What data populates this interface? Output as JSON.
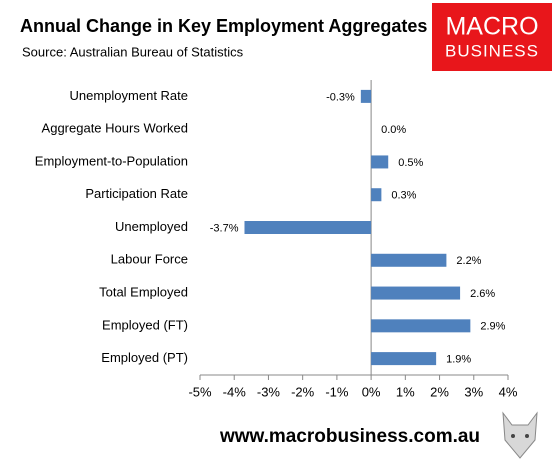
{
  "chart_data": {
    "type": "barh",
    "title": "Annual Change in Key Employment Aggregates",
    "subtitle": "Source: Australian Bureau of Statistics",
    "categories": [
      "Unemployment Rate",
      "Aggregate Hours Worked",
      "Employment-to-Population",
      "Participation Rate",
      "Unemployed",
      "Labour Force",
      "Total Employed",
      "Employed (FT)",
      "Employed (PT)"
    ],
    "values": [
      -0.3,
      0.0,
      0.5,
      0.3,
      -3.7,
      2.2,
      2.6,
      2.9,
      1.9
    ],
    "value_labels": [
      "-0.3%",
      "0.0%",
      "0.5%",
      "0.3%",
      "-3.7%",
      "2.2%",
      "2.6%",
      "2.9%",
      "1.9%"
    ],
    "color": "#4f81bd",
    "xlim": [
      -5,
      4
    ],
    "xticks": [
      {
        "value": -5,
        "label": "-5%"
      },
      {
        "value": -4,
        "label": "-4%"
      },
      {
        "value": -3,
        "label": "-3%"
      },
      {
        "value": -2,
        "label": "-2%"
      },
      {
        "value": -1,
        "label": "-1%"
      },
      {
        "value": 0,
        "label": "0%"
      },
      {
        "value": 1,
        "label": "1%"
      },
      {
        "value": 2,
        "label": "2%"
      },
      {
        "value": 3,
        "label": "3%"
      },
      {
        "value": 4,
        "label": "4%"
      }
    ],
    "grid": false
  },
  "branding": {
    "logo_line1": "MACRO",
    "logo_line2": "BUSINESS",
    "website": "www.macrobusiness.com.au"
  }
}
